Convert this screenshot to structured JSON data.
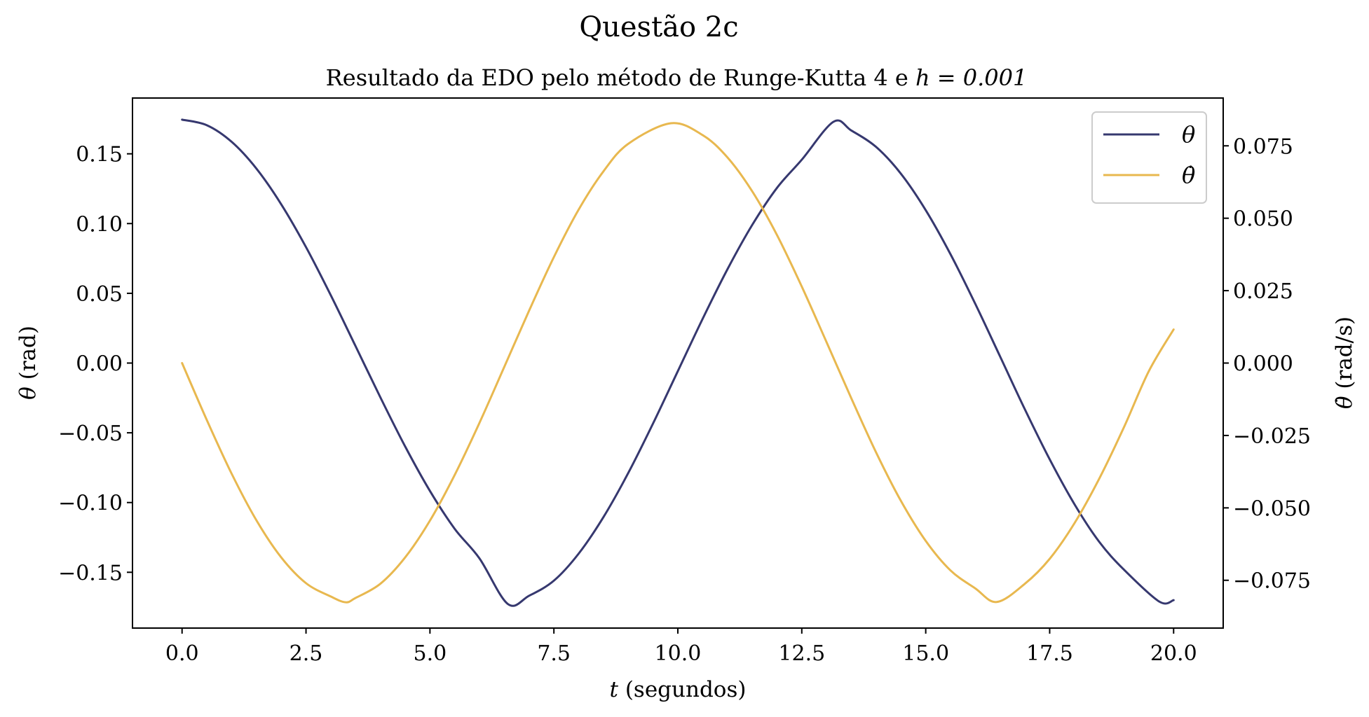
{
  "chart_data": {
    "type": "line",
    "suptitle": "Questão 2c",
    "title": "Resultado da EDO pelo método de Runge-Kutta 4 e h = 0.001",
    "title_prefix": "Resultado da EDO pelo método de Runge-Kutta 4 e ",
    "title_math": "h = 0.001",
    "xlabel": "t (segundos)",
    "xlabel_var": "t",
    "xlabel_unit": " (segundos)",
    "ylabel_left": "θ (rad)",
    "ylabel_left_var": "θ",
    "ylabel_left_unit": " (rad)",
    "ylabel_right": "θ̇ (rad/s)",
    "ylabel_right_var": "θ̇",
    "ylabel_right_unit": " (rad/s)",
    "xlim": [
      -1.0,
      21.0
    ],
    "ylim_left": [
      -0.19,
      0.19
    ],
    "ylim_right": [
      -0.0915,
      0.0915
    ],
    "xticks": [
      "0.0",
      "2.5",
      "5.0",
      "7.5",
      "10.0",
      "12.5",
      "15.0",
      "17.5",
      "20.0"
    ],
    "yticks_left": [
      "0.15",
      "0.10",
      "0.05",
      "0.00",
      "−0.05",
      "−0.10",
      "−0.15"
    ],
    "yticks_right": [
      "0.075",
      "0.050",
      "0.025",
      "0.000",
      "−0.025",
      "−0.050",
      "−0.075"
    ],
    "grid": false,
    "legend_position": "upper right",
    "series": [
      {
        "name": "θ",
        "axis": "left",
        "color": "#36386f",
        "x": [
          0,
          0.5,
          1,
          1.5,
          2,
          2.5,
          3,
          3.5,
          4,
          4.5,
          5,
          5.5,
          6,
          6.57,
          7,
          7.5,
          8,
          8.5,
          9,
          9.5,
          10,
          10.5,
          11,
          11.5,
          12,
          12.5,
          13.14,
          13.5,
          14,
          14.5,
          15,
          15.5,
          16,
          16.5,
          17,
          17.5,
          18,
          18.5,
          19,
          19.71,
          20
        ],
        "y": [
          0.1745,
          0.1705,
          0.1586,
          0.1394,
          0.1138,
          0.0831,
          0.0486,
          0.0121,
          -0.0246,
          -0.0598,
          -0.0917,
          -0.1189,
          -0.1401,
          -0.1727,
          -0.1668,
          -0.156,
          -0.1366,
          -0.1104,
          -0.0788,
          -0.0433,
          -0.0058,
          0.0317,
          0.0672,
          0.099,
          0.1256,
          0.1458,
          0.173,
          0.1667,
          0.1549,
          0.1357,
          0.1096,
          0.078,
          0.0424,
          0.0047,
          -0.0332,
          -0.069,
          -0.1012,
          -0.1282,
          -0.1482,
          -0.171,
          -0.17
        ]
      },
      {
        "name": "θ̇",
        "axis": "right",
        "color": "#e8b84f",
        "x": [
          0,
          0.5,
          1,
          1.5,
          2,
          2.5,
          3,
          3.3,
          3.5,
          4,
          4.5,
          5,
          5.5,
          6,
          6.5,
          7,
          7.5,
          8,
          8.5,
          9,
          9.86,
          10.5,
          11,
          11.5,
          12,
          12.5,
          13,
          13.5,
          14,
          14.5,
          15,
          15.5,
          16,
          16.43,
          17,
          17.5,
          18,
          18.5,
          19,
          19.5,
          20
        ],
        "y": [
          0.0,
          -0.0197,
          -0.0382,
          -0.0543,
          -0.0671,
          -0.076,
          -0.0806,
          -0.0826,
          -0.0811,
          -0.0762,
          -0.0671,
          -0.0544,
          -0.0386,
          -0.0206,
          -0.0013,
          0.0181,
          0.0366,
          0.053,
          0.0662,
          0.0757,
          0.0828,
          0.0787,
          0.071,
          0.0593,
          0.0442,
          0.0264,
          0.0072,
          -0.0122,
          -0.0309,
          -0.0476,
          -0.0614,
          -0.0716,
          -0.0778,
          -0.0825,
          -0.0762,
          -0.0676,
          -0.0553,
          -0.0399,
          -0.0221,
          -0.0028,
          0.0116
        ]
      }
    ]
  }
}
